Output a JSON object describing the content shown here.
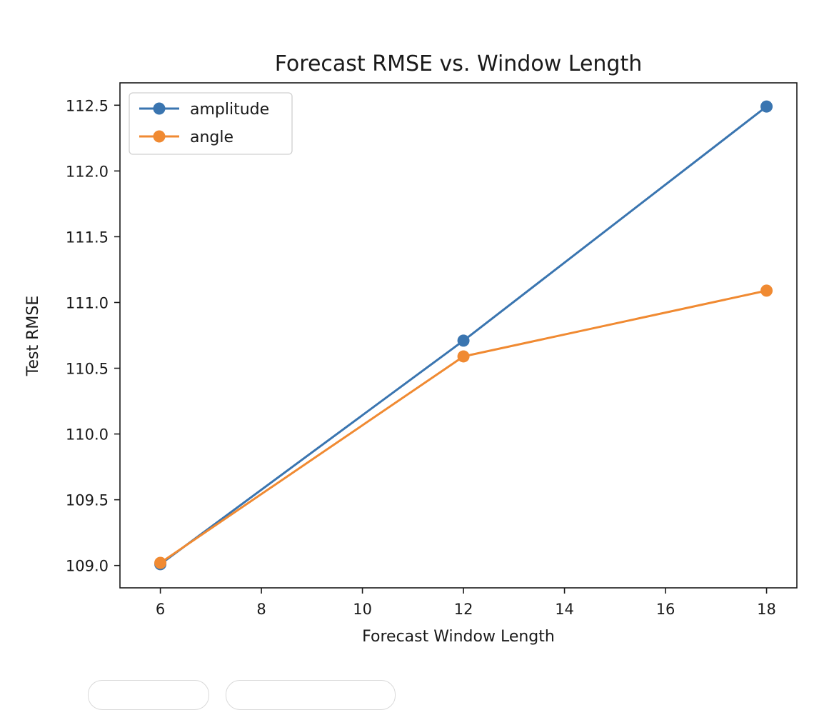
{
  "chart_data": {
    "type": "line",
    "title": "Forecast RMSE vs. Window Length",
    "xlabel": "Forecast Window Length",
    "ylabel": "Test RMSE",
    "x": [
      6,
      12,
      18
    ],
    "series": [
      {
        "name": "amplitude",
        "color": "#3a75b0",
        "values": [
          109.01,
          110.71,
          112.49
        ]
      },
      {
        "name": "angle",
        "color": "#f08a32",
        "values": [
          109.02,
          110.59,
          111.09
        ]
      }
    ],
    "xlim": [
      5.2,
      18.6
    ],
    "ylim": [
      108.83,
      112.67
    ],
    "xticks": [
      6,
      8,
      10,
      12,
      14,
      16,
      18
    ],
    "xtick_labels": [
      "6",
      "8",
      "10",
      "12",
      "14",
      "16",
      "18"
    ],
    "yticks": [
      109.0,
      109.5,
      110.0,
      110.5,
      111.0,
      111.5,
      112.0,
      112.5
    ],
    "ytick_labels": [
      "109.0",
      "109.5",
      "110.0",
      "110.5",
      "111.0",
      "111.5",
      "112.0",
      "112.5"
    ],
    "grid": false,
    "legend_position": "upper-left",
    "marker": "circle"
  }
}
